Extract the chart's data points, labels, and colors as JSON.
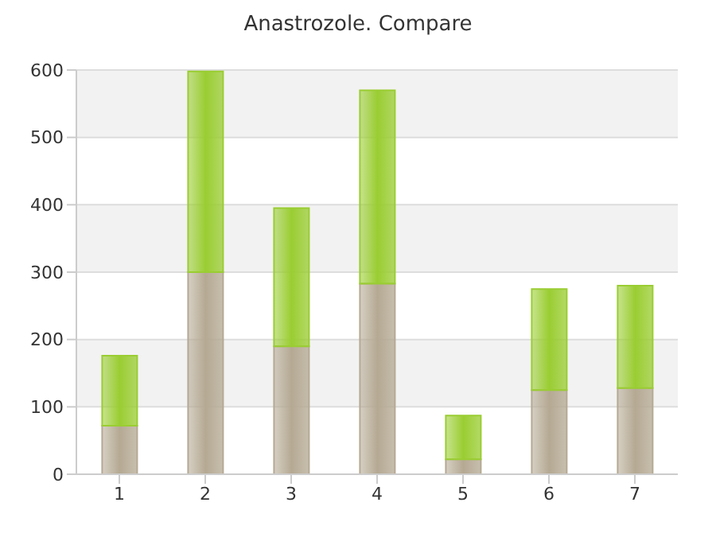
{
  "chart_data": {
    "type": "bar",
    "title": "Anastrozole. Compare",
    "categories": [
      "1",
      "2",
      "3",
      "4",
      "5",
      "6",
      "7"
    ],
    "stacked": true,
    "series": [
      {
        "color": "#b5a993",
        "values": [
          72,
          300,
          190,
          283,
          22,
          125,
          128
        ]
      },
      {
        "color": "#9acd32",
        "values": [
          104,
          298,
          205,
          287,
          65,
          150,
          152
        ]
      }
    ],
    "ylim": [
      0,
      600
    ],
    "yticks": [
      0,
      100,
      200,
      300,
      400,
      500,
      600
    ],
    "grid": "y"
  }
}
